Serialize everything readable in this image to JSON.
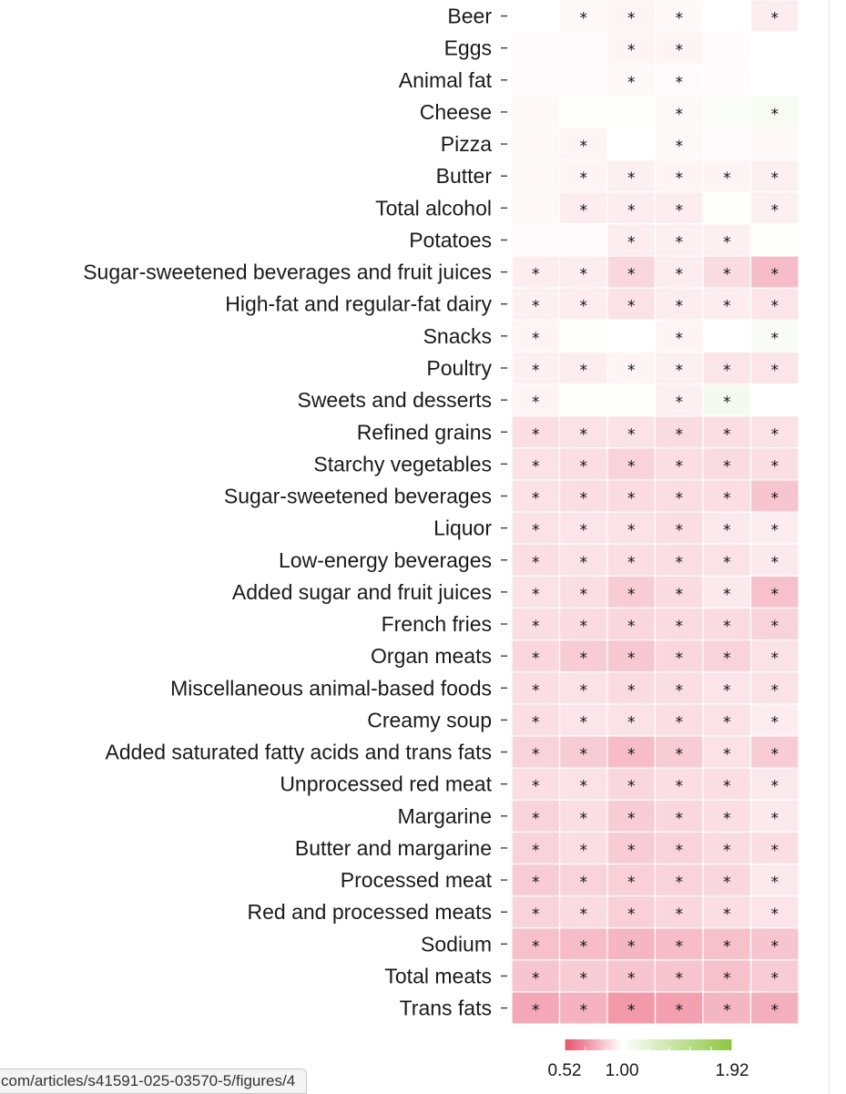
{
  "chart_data": {
    "type": "heatmap",
    "title": "",
    "xlabel": "",
    "ylabel": "",
    "rows": [
      "Beer",
      "Eggs",
      "Animal fat",
      "Cheese",
      "Pizza",
      "Butter",
      "Total alcohol",
      "Potatoes",
      "Sugar-sweetened beverages and fruit juices",
      "High-fat and regular-fat dairy",
      "Snacks",
      "Poultry",
      "Sweets and desserts",
      "Refined grains",
      "Starchy vegetables",
      "Sugar-sweetened beverages",
      "Liquor",
      "Low-energy beverages",
      "Added sugar and fruit juices",
      "French fries",
      "Organ meats",
      "Miscellaneous animal-based foods",
      "Creamy soup",
      "Added saturated fatty acids and trans fats",
      "Unprocessed red meat",
      "Margarine",
      "Butter and margarine",
      "Processed meat",
      "Red and processed meats",
      "Sodium",
      "Total meats",
      "Trans fats"
    ],
    "column_count": 6,
    "values": [
      [
        1.0,
        0.98,
        0.97,
        0.98,
        1.0,
        0.95
      ],
      [
        0.99,
        0.99,
        0.97,
        0.97,
        0.99,
        1.0
      ],
      [
        0.99,
        0.99,
        0.98,
        0.99,
        0.99,
        1.0
      ],
      [
        0.98,
        1.01,
        1.01,
        0.98,
        1.03,
        1.06
      ],
      [
        0.98,
        0.97,
        1.0,
        0.98,
        0.99,
        0.98
      ],
      [
        0.98,
        0.97,
        0.96,
        0.97,
        0.97,
        0.96
      ],
      [
        0.98,
        0.95,
        0.95,
        0.95,
        1.01,
        0.96
      ],
      [
        0.99,
        0.99,
        0.95,
        0.96,
        0.96,
        1.01
      ],
      [
        0.95,
        0.95,
        0.89,
        0.95,
        0.9,
        0.82
      ],
      [
        0.96,
        0.95,
        0.92,
        0.95,
        0.95,
        0.93
      ],
      [
        0.97,
        1.01,
        1.0,
        0.97,
        1.0,
        1.05
      ],
      [
        0.96,
        0.95,
        0.97,
        0.96,
        0.93,
        0.93
      ],
      [
        0.97,
        1.01,
        1.01,
        0.96,
        1.08,
        1.0
      ],
      [
        0.91,
        0.92,
        0.92,
        0.9,
        0.91,
        0.92
      ],
      [
        0.92,
        0.91,
        0.88,
        0.91,
        0.9,
        0.91
      ],
      [
        0.92,
        0.91,
        0.9,
        0.91,
        0.91,
        0.84
      ],
      [
        0.92,
        0.93,
        0.92,
        0.91,
        0.94,
        0.95
      ],
      [
        0.91,
        0.92,
        0.91,
        0.91,
        0.92,
        0.94
      ],
      [
        0.92,
        0.91,
        0.86,
        0.9,
        0.94,
        0.83
      ],
      [
        0.91,
        0.9,
        0.89,
        0.9,
        0.9,
        0.88
      ],
      [
        0.89,
        0.86,
        0.85,
        0.89,
        0.88,
        0.92
      ],
      [
        0.91,
        0.92,
        0.9,
        0.91,
        0.93,
        0.92
      ],
      [
        0.91,
        0.93,
        0.92,
        0.91,
        0.92,
        0.95
      ],
      [
        0.88,
        0.86,
        0.82,
        0.86,
        0.92,
        0.86
      ],
      [
        0.91,
        0.92,
        0.89,
        0.91,
        0.91,
        0.94
      ],
      [
        0.88,
        0.91,
        0.86,
        0.89,
        0.91,
        0.94
      ],
      [
        0.88,
        0.91,
        0.86,
        0.88,
        0.9,
        0.91
      ],
      [
        0.86,
        0.88,
        0.87,
        0.88,
        0.89,
        0.94
      ],
      [
        0.88,
        0.9,
        0.87,
        0.89,
        0.91,
        0.93
      ],
      [
        0.83,
        0.82,
        0.8,
        0.82,
        0.83,
        0.84
      ],
      [
        0.84,
        0.86,
        0.84,
        0.84,
        0.83,
        0.86
      ],
      [
        0.76,
        0.79,
        0.72,
        0.74,
        0.8,
        0.78
      ]
    ],
    "significant": [
      [
        false,
        true,
        true,
        true,
        false,
        true
      ],
      [
        false,
        false,
        true,
        true,
        false,
        false
      ],
      [
        false,
        false,
        true,
        true,
        false,
        false
      ],
      [
        false,
        false,
        false,
        true,
        false,
        true
      ],
      [
        false,
        true,
        false,
        true,
        false,
        false
      ],
      [
        false,
        true,
        true,
        true,
        true,
        true
      ],
      [
        false,
        true,
        true,
        true,
        false,
        true
      ],
      [
        false,
        false,
        true,
        true,
        true,
        false
      ],
      [
        true,
        true,
        true,
        true,
        true,
        true
      ],
      [
        true,
        true,
        true,
        true,
        true,
        true
      ],
      [
        true,
        false,
        false,
        true,
        false,
        true
      ],
      [
        true,
        true,
        true,
        true,
        true,
        true
      ],
      [
        true,
        false,
        false,
        true,
        true,
        false
      ],
      [
        true,
        true,
        true,
        true,
        true,
        true
      ],
      [
        true,
        true,
        true,
        true,
        true,
        true
      ],
      [
        true,
        true,
        true,
        true,
        true,
        true
      ],
      [
        true,
        true,
        true,
        true,
        true,
        true
      ],
      [
        true,
        true,
        true,
        true,
        true,
        true
      ],
      [
        true,
        true,
        true,
        true,
        true,
        true
      ],
      [
        true,
        true,
        true,
        true,
        true,
        true
      ],
      [
        true,
        true,
        true,
        true,
        true,
        true
      ],
      [
        true,
        true,
        true,
        true,
        true,
        true
      ],
      [
        true,
        true,
        true,
        true,
        true,
        true
      ],
      [
        true,
        true,
        true,
        true,
        true,
        true
      ],
      [
        true,
        true,
        true,
        true,
        true,
        true
      ],
      [
        true,
        true,
        true,
        true,
        true,
        true
      ],
      [
        true,
        true,
        true,
        true,
        true,
        true
      ],
      [
        true,
        true,
        true,
        true,
        true,
        true
      ],
      [
        true,
        true,
        true,
        true,
        true,
        true
      ],
      [
        true,
        true,
        true,
        true,
        true,
        true
      ],
      [
        true,
        true,
        true,
        true,
        true,
        true
      ],
      [
        true,
        true,
        true,
        true,
        true,
        true
      ]
    ],
    "significance_marker": "*",
    "colorbar": {
      "min": 0.52,
      "mid": 1.0,
      "max": 1.92,
      "tick_labels": [
        "0.52",
        "1.00",
        "1.92"
      ],
      "low_color": "#e8506e",
      "mid_color": "#ffffff",
      "high_color": "#8cc63f"
    }
  },
  "overlay": {
    "url_tooltip": "com/articles/s41591-025-03570-5/figures/4"
  }
}
